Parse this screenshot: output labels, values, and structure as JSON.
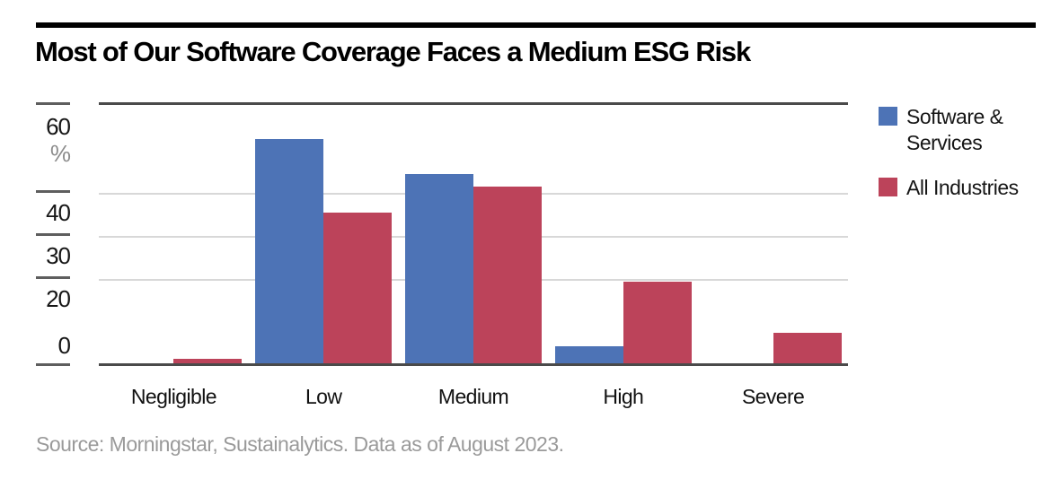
{
  "page": {
    "title": "Most of Our Software Coverage Faces a Medium ESG Risk",
    "source_note": "Source: Morningstar, Sustainalytics. Data as of August 2023."
  },
  "chart_data": {
    "type": "bar",
    "title": "Most of Our Software Coverage Faces a Medium ESG Risk",
    "categories": [
      "Negligible",
      "Low",
      "Medium",
      "High",
      "Severe"
    ],
    "series": [
      {
        "name": "Software & Services",
        "color": "#4d73b6",
        "values": [
          0,
          52,
          44,
          4,
          0
        ]
      },
      {
        "name": "All Industries",
        "color": "#bc435a",
        "values": [
          1,
          35,
          41,
          19,
          7
        ]
      }
    ],
    "xlabel": "",
    "ylabel": "%",
    "ylim": [
      0,
      60
    ],
    "yticks": [
      60,
      40,
      30,
      20,
      0
    ],
    "gridlines_at": [
      40,
      30,
      20
    ],
    "grid": "horizontal",
    "legend_position": "right",
    "source": "Source: Morningstar, Sustainalytics. Data as of August 2023."
  },
  "colors": {
    "series_blue": "#4d73b6",
    "series_red": "#bc435a",
    "axis_dark": "#4a4a4a",
    "tick_dash": "#5e5e5e",
    "gridline_light": "#d8d8d8",
    "title_text": "#000000",
    "axis_text": "#161616",
    "unit_text": "#8c8c8c",
    "source_text": "#9a9a9a",
    "top_rule": "#000000"
  }
}
